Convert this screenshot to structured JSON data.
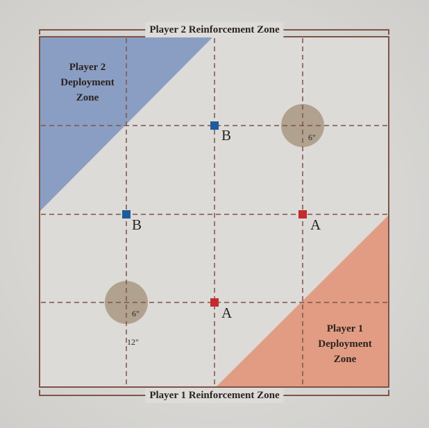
{
  "zones": {
    "top_reinforcement": "Player 2 Reinforcement Zone",
    "bottom_reinforcement": "Player 1 Reinforcement Zone",
    "p2_deployment": "Player 2\nDeployment\nZone",
    "p1_deployment": "Player 1\nDeployment\nZone"
  },
  "objectives": [
    {
      "label": "B",
      "team": "blue"
    },
    {
      "label": "B",
      "team": "blue"
    },
    {
      "label": "A",
      "team": "red"
    },
    {
      "label": "A",
      "team": "red"
    }
  ],
  "measurements": {
    "circle_top": "6\"",
    "circle_bottom": "6\"",
    "grid_spacing": "12\""
  },
  "colors": {
    "board_line": "#7d5346",
    "p2_zone": "#7b93c0",
    "p1_zone": "#e39074",
    "blue_marker": "#1d5c9c",
    "red_marker": "#c42a2e",
    "terrain_circle": "#a99683"
  }
}
